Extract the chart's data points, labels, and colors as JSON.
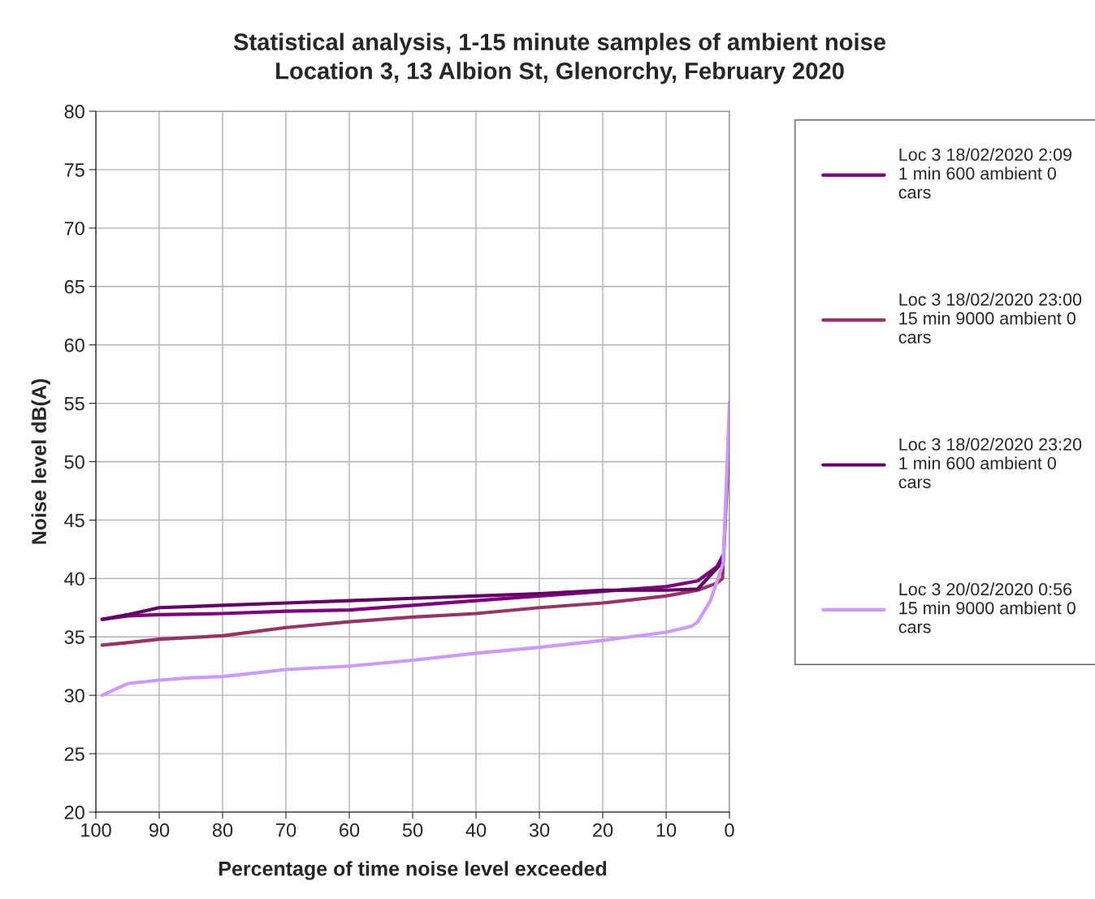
{
  "chart_data": {
    "type": "line",
    "title": "Statistical analysis, 1-15 minute samples of ambient noise\nLocation 3, 13 Albion St, Glenorchy, February 2020",
    "xlabel": "Percentage of time noise level exceeded",
    "ylabel": "Noise level dB(A)",
    "xlim": [
      100,
      0
    ],
    "xticks": [
      100,
      90,
      80,
      70,
      60,
      50,
      40,
      30,
      20,
      10,
      0
    ],
    "ylim": [
      20,
      80
    ],
    "yticks": [
      20,
      25,
      30,
      35,
      40,
      45,
      50,
      55,
      60,
      65,
      70,
      75,
      80
    ],
    "grid": true,
    "legend": "right",
    "marker": "none",
    "line_style": "solid",
    "series": [
      {
        "name": "Loc 3 18/02/2020 2:09\n1 min 600 ambient 0\ncars",
        "color": "#800080",
        "x": [
          99,
          95,
          90,
          80,
          70,
          60,
          50,
          40,
          30,
          20,
          10,
          5,
          2,
          1.1
        ],
        "values": [
          36.5,
          36.8,
          36.9,
          37.0,
          37.2,
          37.3,
          37.7,
          38.1,
          38.5,
          38.9,
          39.3,
          39.8,
          41.0,
          41.9
        ]
      },
      {
        "name": "Loc 3 18/02/2020 23:00\n15 min 9000 ambient 0\ncars",
        "color": "#993366",
        "x": [
          99,
          95,
          90,
          80,
          70,
          60,
          50,
          40,
          30,
          20,
          10,
          5,
          2,
          1.1,
          0.3,
          0
        ],
        "values": [
          34.3,
          34.5,
          34.8,
          35.1,
          35.8,
          36.3,
          36.7,
          37.0,
          37.5,
          37.9,
          38.5,
          39.0,
          39.6,
          40.0,
          49.0,
          53.4
        ]
      },
      {
        "name": "Loc 3 18/02/2020 23:20\n1 min 600 ambient 0\ncars",
        "color": "#660066",
        "x": [
          99,
          95,
          90,
          80,
          70,
          60,
          50,
          40,
          30,
          20,
          10,
          5,
          1.1
        ],
        "values": [
          36.5,
          36.9,
          37.5,
          37.7,
          37.9,
          38.1,
          38.3,
          38.5,
          38.7,
          39.0,
          39.0,
          39.1,
          41.4
        ]
      },
      {
        "name": "Loc 3 20/02/2020 0:56\n15 min 9000 ambient 0\ncars",
        "color": "#cc99ff",
        "x": [
          99,
          95,
          90,
          85,
          80,
          70,
          60,
          50,
          40,
          30,
          20,
          10,
          6,
          5,
          3,
          2,
          1,
          0.4,
          0
        ],
        "values": [
          30.0,
          31.0,
          31.3,
          31.5,
          31.6,
          32.2,
          32.5,
          33.0,
          33.6,
          34.1,
          34.7,
          35.4,
          35.9,
          36.3,
          38.1,
          39.7,
          41.3,
          49.2,
          55.1
        ]
      }
    ]
  }
}
